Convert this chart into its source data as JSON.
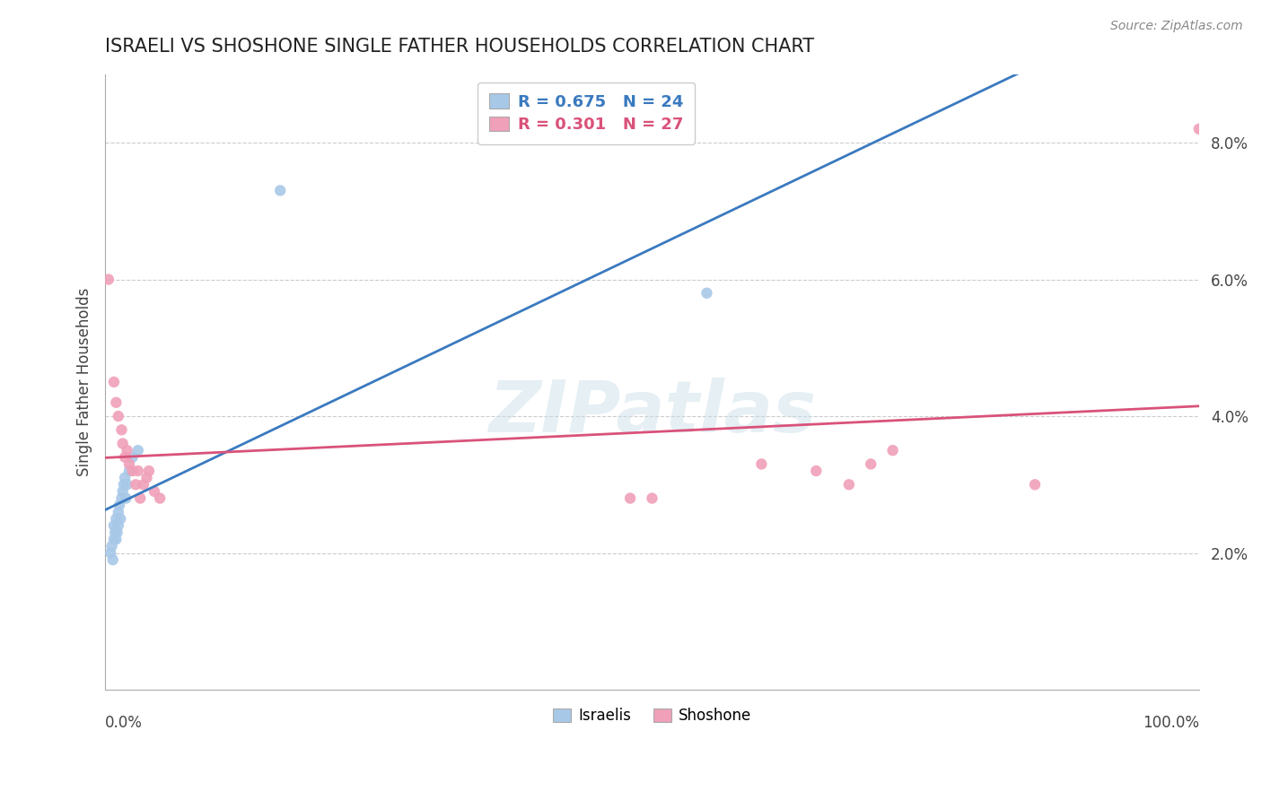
{
  "title": "ISRAELI VS SHOSHONE SINGLE FATHER HOUSEHOLDS CORRELATION CHART",
  "source": "Source: ZipAtlas.com",
  "ylabel": "Single Father Households",
  "watermark": "ZIPatlas",
  "legend_r_israeli": "R = 0.675",
  "legend_n_israeli": "N = 24",
  "legend_r_shoshone": "R = 0.301",
  "legend_n_shoshone": "N = 27",
  "israeli_color": "#a8c8e8",
  "israeli_line_color": "#3a7abf",
  "shoshone_color": "#f0a0b8",
  "shoshone_line_color": "#d9527a",
  "background_color": "#ffffff",
  "israeli_x": [
    0.005,
    0.006,
    0.007,
    0.008,
    0.008,
    0.009,
    0.01,
    0.01,
    0.011,
    0.012,
    0.012,
    0.013,
    0.014,
    0.015,
    0.016,
    0.017,
    0.018,
    0.019,
    0.02,
    0.022,
    0.025,
    0.03,
    0.16,
    0.55
  ],
  "israeli_y": [
    0.02,
    0.021,
    0.019,
    0.022,
    0.024,
    0.023,
    0.022,
    0.025,
    0.023,
    0.024,
    0.026,
    0.027,
    0.025,
    0.028,
    0.029,
    0.03,
    0.031,
    0.028,
    0.03,
    0.032,
    0.034,
    0.035,
    0.073,
    0.058
  ],
  "shoshone_x": [
    0.003,
    0.008,
    0.01,
    0.012,
    0.015,
    0.016,
    0.018,
    0.02,
    0.022,
    0.025,
    0.028,
    0.03,
    0.032,
    0.035,
    0.038,
    0.04,
    0.045,
    0.05,
    0.48,
    0.5,
    0.6,
    0.65,
    0.68,
    0.7,
    0.72,
    0.85,
    1.0
  ],
  "shoshone_y": [
    0.06,
    0.045,
    0.042,
    0.04,
    0.038,
    0.036,
    0.034,
    0.035,
    0.033,
    0.032,
    0.03,
    0.032,
    0.028,
    0.03,
    0.031,
    0.032,
    0.029,
    0.028,
    0.028,
    0.028,
    0.033,
    0.032,
    0.03,
    0.033,
    0.035,
    0.03,
    0.082
  ],
  "xlim": [
    0.0,
    1.0
  ],
  "ylim": [
    0.0,
    0.09
  ],
  "yticks": [
    0.0,
    0.02,
    0.04,
    0.06,
    0.08
  ],
  "ytick_labels": [
    "",
    "2.0%",
    "4.0%",
    "6.0%",
    "8.0%"
  ],
  "grid_color": "#cccccc",
  "marker_size": 80,
  "title_fontsize": 15,
  "label_fontsize": 12,
  "legend_fontsize": 13
}
